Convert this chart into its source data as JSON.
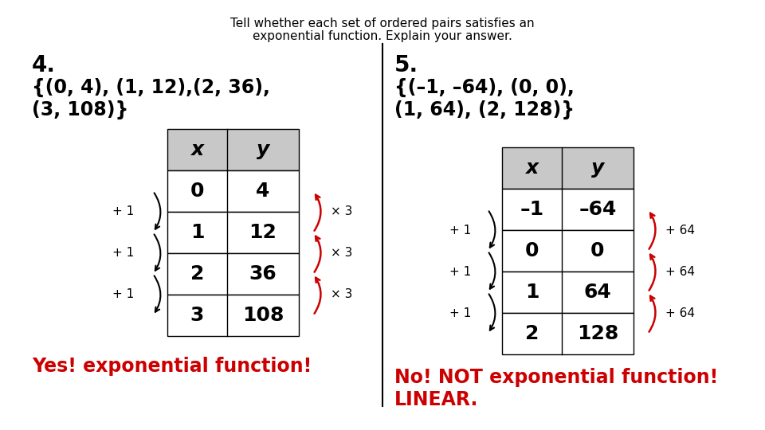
{
  "title_line1": "Tell whether each set of ordered pairs satisfies an",
  "title_line2": "exponential function. Explain your answer.",
  "problem4_label": "4.",
  "problem4_line1": "{(0, 4), (1, 12),(2, 36),",
  "problem4_line2": "(3, 108)}",
  "problem5_label": "5.",
  "problem5_line1": "{(–1, –64), (0, 0),",
  "problem5_line2": "(1, 64), (2, 128)}",
  "table1_headers": [
    "x",
    "y"
  ],
  "table1_data": [
    [
      "0",
      "4"
    ],
    [
      "1",
      "12"
    ],
    [
      "2",
      "36"
    ],
    [
      "3",
      "108"
    ]
  ],
  "table2_headers": [
    "x",
    "y"
  ],
  "table2_data": [
    [
      "–1",
      "–64"
    ],
    [
      "0",
      "0"
    ],
    [
      "1",
      "64"
    ],
    [
      "2",
      "128"
    ]
  ],
  "left_annotations": [
    "+ 1",
    "+ 1",
    "+ 1"
  ],
  "right_annotations1": [
    "× 3",
    "× 3",
    "× 3"
  ],
  "right_annotations2": [
    "+ 64",
    "+ 64",
    "+ 64"
  ],
  "answer1": "Yes! exponential function!",
  "answer2_line1": "No! NOT exponential function!",
  "answer2_line2": "LINEAR.",
  "answer_color": "#cc0000",
  "bg_color": "#ffffff",
  "table_header_bg": "#c8c8c8"
}
